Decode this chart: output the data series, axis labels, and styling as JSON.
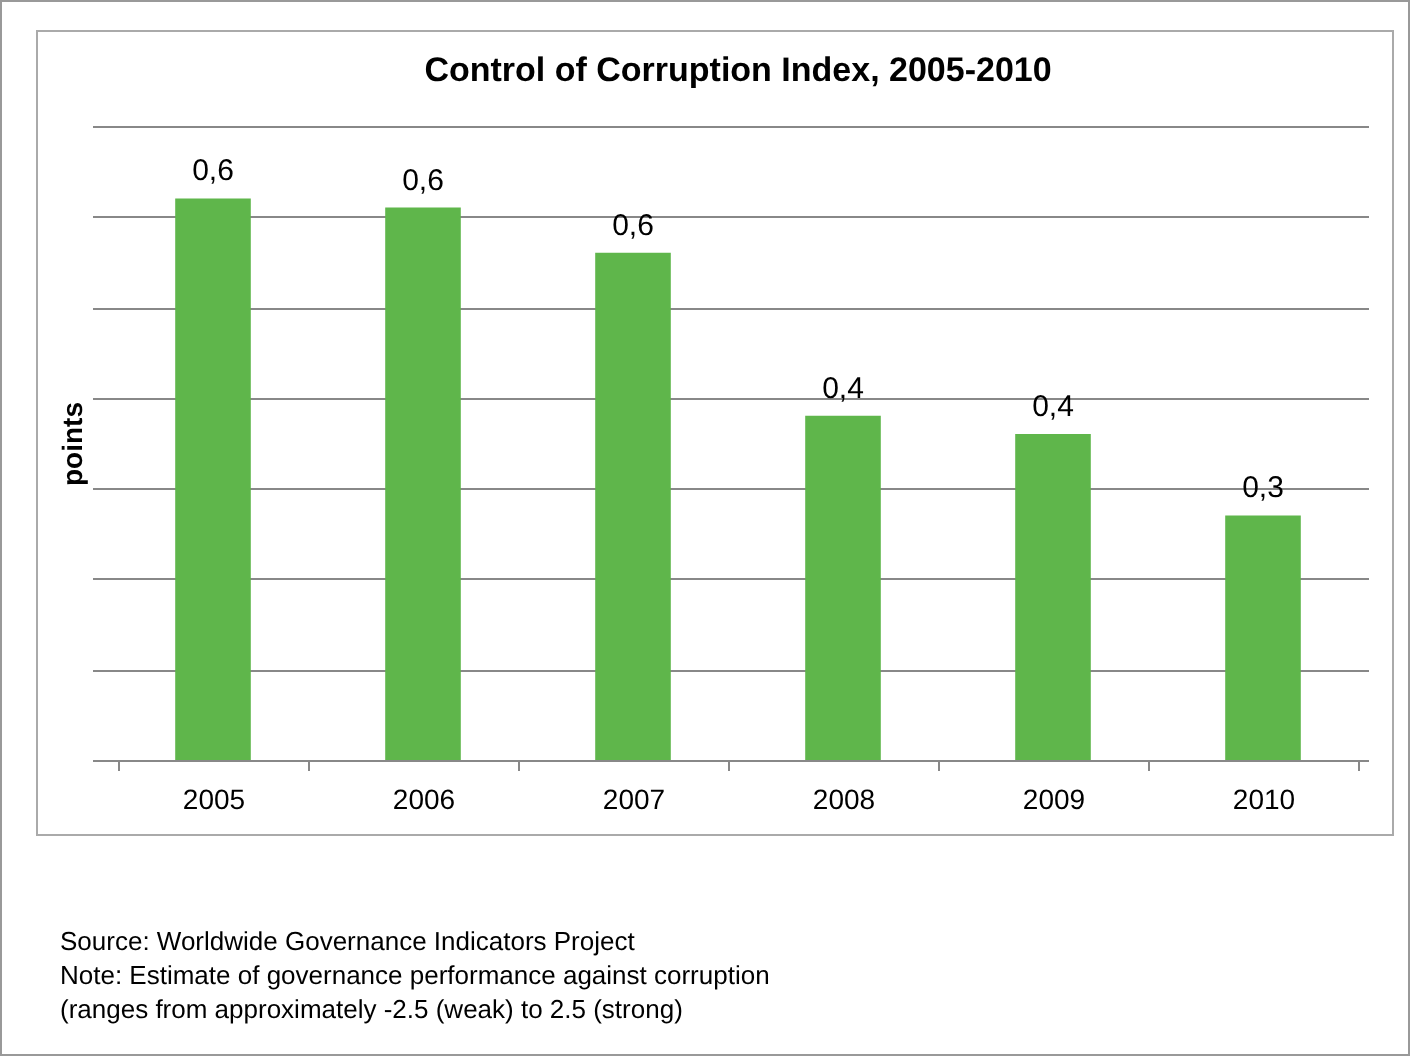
{
  "chart_data": {
    "type": "bar",
    "title": "Control of Corruption Index, 2005-2010",
    "ylabel": "points",
    "categories": [
      "2005",
      "2006",
      "2007",
      "2008",
      "2009",
      "2010"
    ],
    "values": [
      0.62,
      0.61,
      0.56,
      0.38,
      0.36,
      0.27
    ],
    "value_labels": [
      "0,6",
      "0,6",
      "0,6",
      "0,4",
      "0,4",
      "0,3"
    ],
    "color": "#5fb64b",
    "ylim": [
      0,
      0.7
    ],
    "yticks": [
      {
        "value": 0,
        "label": null
      },
      {
        "value": 0.1,
        "label": null
      },
      {
        "value": 0.2,
        "label": null
      },
      {
        "value": 0.3,
        "label": null
      },
      {
        "value": 0.4,
        "label": null
      },
      {
        "value": 0.5,
        "label": null
      },
      {
        "value": 0.6,
        "label": null
      },
      {
        "value": 0.7,
        "label": null
      }
    ],
    "grid": true,
    "annotations": [
      "Source: Worldwide Governance Indicators Project",
      "Note: Estimate of governance performance against corruption",
      "(ranges from approximately -2.5 (weak) to 2.5 (strong)"
    ]
  }
}
